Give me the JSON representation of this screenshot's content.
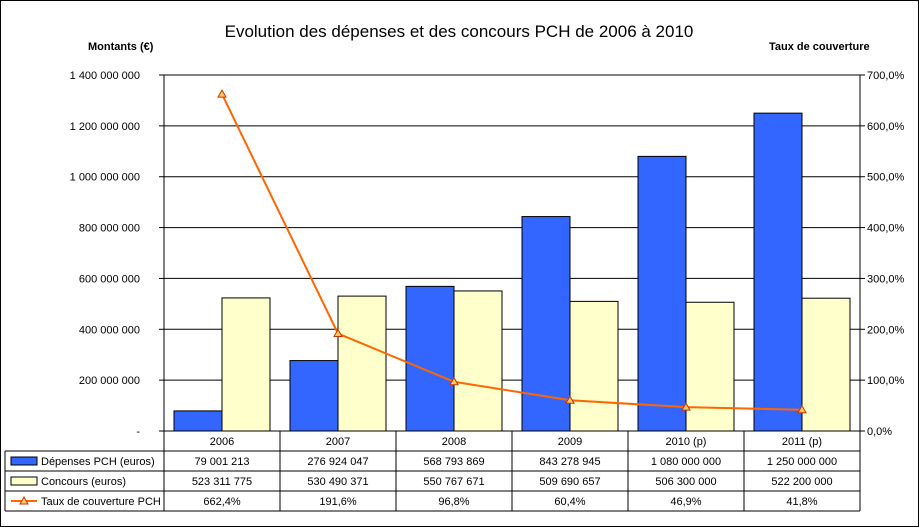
{
  "chart_data": {
    "type": "bar",
    "title": "Evolution des dépenses et des concours PCH de 2006 à 2010",
    "ylabel": "Montants (€)",
    "y2label": "Taux de couverture",
    "categories": [
      "2006",
      "2007",
      "2008",
      "2009",
      "2010 (p)",
      "2011 (p)"
    ],
    "ylim": [
      0,
      1400000000
    ],
    "y2lim": [
      0,
      700
    ],
    "yticks": [
      {
        "value": 0,
        "label": "-"
      },
      {
        "value": 200000000,
        "label": "200 000 000"
      },
      {
        "value": 400000000,
        "label": "400 000 000"
      },
      {
        "value": 600000000,
        "label": "600 000 000"
      },
      {
        "value": 800000000,
        "label": "800 000 000"
      },
      {
        "value": 1000000000,
        "label": "1 000 000 000"
      },
      {
        "value": 1200000000,
        "label": "1 200 000 000"
      },
      {
        "value": 1400000000,
        "label": "1 400 000 000"
      }
    ],
    "y2ticks": [
      {
        "value": 0,
        "label": "0,0%"
      },
      {
        "value": 100,
        "label": "100,0%"
      },
      {
        "value": 200,
        "label": "200,0%"
      },
      {
        "value": 300,
        "label": "300,0%"
      },
      {
        "value": 400,
        "label": "400,0%"
      },
      {
        "value": 500,
        "label": "500,0%"
      },
      {
        "value": 600,
        "label": "600,0%"
      },
      {
        "value": 700,
        "label": "700,0%"
      }
    ],
    "grid": true,
    "legend": "data-table",
    "series": [
      {
        "name": "Dépenses PCH (euros)",
        "type": "bar",
        "axis": "left",
        "color": "#3366ff",
        "values": [
          79001213,
          276924047,
          568793869,
          843278945,
          1080000000,
          1250000000
        ],
        "labels": [
          "79 001 213",
          "276 924 047",
          "568 793 869",
          "843 278 945",
          "1 080 000 000",
          "1 250 000 000"
        ]
      },
      {
        "name": "Concours (euros)",
        "type": "bar",
        "axis": "left",
        "color": "#ffffcc",
        "values": [
          523311775,
          530490371,
          550767671,
          509690657,
          506300000,
          522200000
        ],
        "labels": [
          "523 311 775",
          "530 490 371",
          "550 767 671",
          "509 690 657",
          "506 300 000",
          "522 200 000"
        ]
      },
      {
        "name": "Taux de couverture PCH",
        "type": "line",
        "axis": "right",
        "color": "#ff6600",
        "values": [
          662.4,
          191.6,
          96.8,
          60.4,
          46.9,
          41.8
        ],
        "labels": [
          "662,4%",
          "191,6%",
          "96,8%",
          "60,4%",
          "46,9%",
          "41,8%"
        ]
      }
    ]
  }
}
